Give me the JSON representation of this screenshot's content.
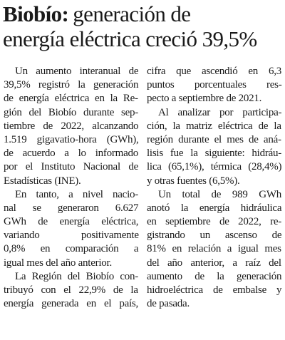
{
  "headline": {
    "lead": "Biobío:",
    "line1": "generación de",
    "line2": "energía eléctrica creció 39,5%"
  },
  "columns": [
    {
      "paragraphs": [
        {
          "lines": [
            "Un aumento interanual de",
            "39,5% registró la generación",
            "de energía eléctrica en la Re-",
            "gión del Biobío durante sep-",
            "tiembre de 2022, alcanzando",
            "1.519 gigavatio-hora (GWh),",
            "de acuerdo a lo informado",
            "por el Instituto Nacional de",
            "Estadísticas (INE)."
          ]
        },
        {
          "lines": [
            "En tanto, a nivel nacio-",
            "nal se generaron 6.627",
            "GWh de energía eléctrica,",
            "variando positivamente",
            "0,8% en comparación a",
            "igual mes del año anterior."
          ]
        },
        {
          "lines": [
            "La Región del Biobío con-",
            "tribuyó con el 22,9% de la",
            "energía generada en el país,"
          ]
        }
      ]
    },
    {
      "paragraphs": [
        {
          "lines": [
            "cifra que ascendió en 6,3",
            "puntos porcentuales res-",
            "pecto a septiembre de 2021."
          ]
        },
        {
          "lines": [
            "Al analizar por participa-",
            "ción, la matriz eléctrica de la",
            "región durante el mes de aná-",
            "lisis fue la siguiente: hidráu-",
            "lica (65,1%), térmica (28,4%)",
            "y otras fuentes (6,5%)."
          ]
        },
        {
          "lines": [
            "Un total de 989 GWh",
            "anotó la energía hidráulica",
            "en septiembre de 2022, re-",
            "gistrando un ascenso de",
            "81% en relación a igual mes",
            "del año anterior, a raíz del",
            "aumento de la generación",
            "hidroeléctrica de embalse y",
            "de pasada."
          ]
        }
      ]
    }
  ]
}
